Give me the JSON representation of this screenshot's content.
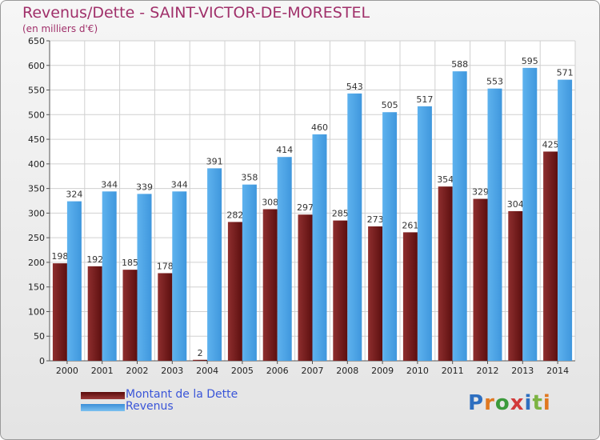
{
  "title": "Revenus/Dette - SAINT-VICTOR-DE-MORESTEL",
  "subtitle": "(en milliers d'€)",
  "legend": {
    "dette": "Montant de la Dette",
    "revenus": "Revenus"
  },
  "logo": "Proxiti",
  "colors": {
    "dette": "#7a1f1f",
    "revenus": "#4aa3e6",
    "title": "#a0306a",
    "legend_text": "#3a55d8"
  },
  "chart_data": {
    "type": "bar",
    "categories": [
      "2000",
      "2001",
      "2002",
      "2003",
      "2004",
      "2005",
      "2006",
      "2007",
      "2008",
      "2009",
      "2010",
      "2011",
      "2012",
      "2013",
      "2014"
    ],
    "series": [
      {
        "name": "Montant de la Dette",
        "values": [
          198,
          192,
          185,
          178,
          2,
          282,
          308,
          297,
          285,
          273,
          261,
          354,
          329,
          304,
          425
        ]
      },
      {
        "name": "Revenus",
        "values": [
          324,
          344,
          339,
          344,
          391,
          358,
          414,
          460,
          543,
          505,
          517,
          588,
          553,
          595,
          571
        ]
      }
    ],
    "ylim": [
      0,
      650
    ],
    "yticks": [
      0,
      50,
      100,
      150,
      200,
      250,
      300,
      350,
      400,
      450,
      500,
      550,
      600,
      650
    ],
    "grid": true,
    "legend_position": "bottom-left"
  }
}
